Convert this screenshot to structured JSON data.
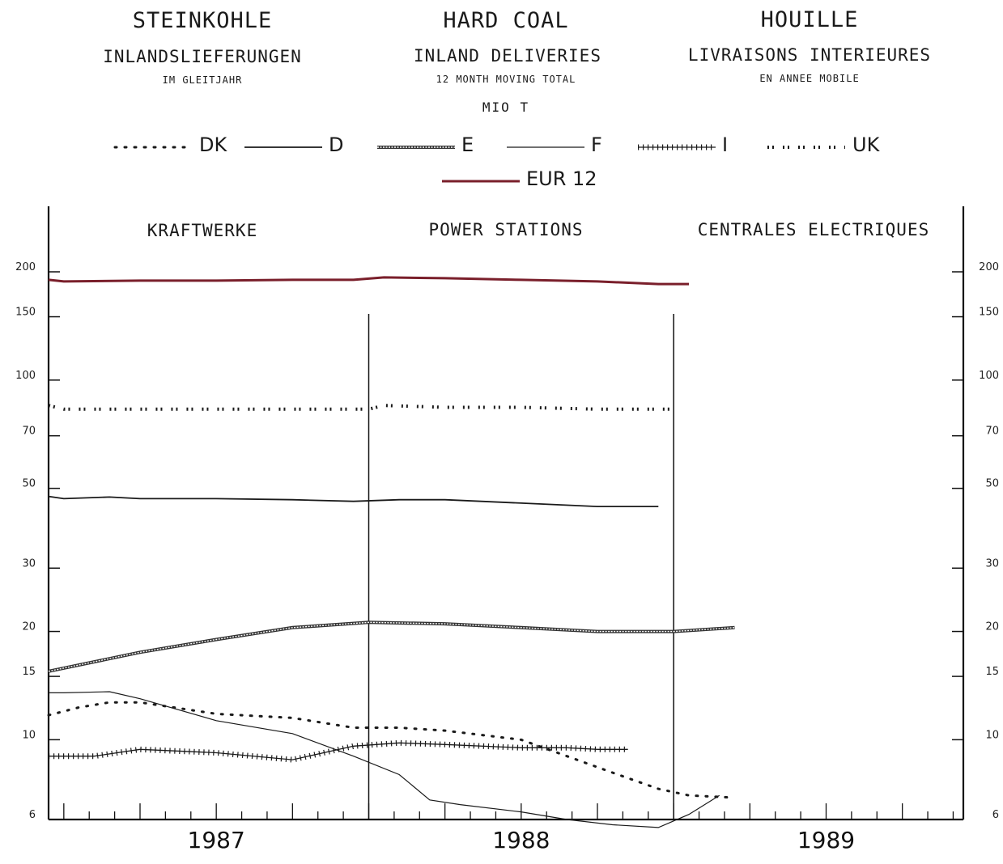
{
  "header": {
    "de": {
      "title": "STEINKOHLE",
      "subtitle": "INLANDSLIEFERUNGEN",
      "note": "IM GLEITJAHR"
    },
    "en": {
      "title": "HARD COAL",
      "subtitle": "INLAND DELIVERIES",
      "note": "12 MONTH MOVING TOTAL"
    },
    "fr": {
      "title": "HOUILLE",
      "subtitle": "LIVRAISONS INTERIEURES",
      "note": "EN ANNEE MOBILE"
    },
    "unit": "MIO T"
  },
  "panel": {
    "de": "KRAFTWERKE",
    "en": "POWER STATIONS",
    "fr": "CENTRALES ELECTRIQUES"
  },
  "chart_data": {
    "type": "line",
    "yscale": "log",
    "ylim": [
      6,
      200
    ],
    "yticks": [
      6,
      10,
      15,
      20,
      30,
      50,
      70,
      100,
      150,
      200
    ],
    "ytick_labels": [
      "6",
      "10",
      "15",
      "20",
      "30",
      "50",
      "70",
      "100",
      "150",
      "200"
    ],
    "xlim": [
      1986.45,
      1989.45
    ],
    "year_labels": [
      {
        "x": 1987,
        "label": "1987"
      },
      {
        "x": 1988,
        "label": "1988"
      },
      {
        "x": 1989,
        "label": "1989"
      }
    ],
    "year_separators": [
      1987.5,
      1988.5
    ],
    "series": [
      {
        "name": "EUR 12",
        "color": "#7a1f2b",
        "style": "solid-bold",
        "x": [
          1986.45,
          1986.5,
          1986.75,
          1987.0,
          1987.25,
          1987.45,
          1987.55,
          1987.75,
          1988.0,
          1988.25,
          1988.45,
          1988.55
        ],
        "y": [
          190,
          188,
          189,
          189,
          190,
          190,
          193,
          192,
          190,
          188,
          185,
          185
        ]
      },
      {
        "name": "UK",
        "color": "#1a1a1a",
        "style": "dash-dot",
        "x": [
          1986.45,
          1986.5,
          1986.75,
          1987.0,
          1987.25,
          1987.45,
          1987.5,
          1987.55,
          1987.75,
          1988.0,
          1988.25,
          1988.5
        ],
        "y": [
          85,
          83,
          83,
          83,
          83,
          83,
          83,
          85,
          84,
          84,
          83,
          83
        ]
      },
      {
        "name": "D",
        "color": "#1a1a1a",
        "style": "solid",
        "x": [
          1986.45,
          1986.5,
          1986.65,
          1986.75,
          1987.0,
          1987.25,
          1987.45,
          1987.6,
          1987.75,
          1988.0,
          1988.25,
          1988.45
        ],
        "y": [
          47.5,
          46.8,
          47.3,
          46.8,
          46.8,
          46.5,
          46.0,
          46.5,
          46.5,
          45.5,
          44.5,
          44.5
        ]
      },
      {
        "name": "E",
        "color": "#1a1a1a",
        "style": "double",
        "x": [
          1986.45,
          1986.75,
          1987.0,
          1987.25,
          1987.5,
          1987.75,
          1988.0,
          1988.25,
          1988.5,
          1988.7
        ],
        "y": [
          15.5,
          17.5,
          19.0,
          20.5,
          21.2,
          21.0,
          20.5,
          20.0,
          20.0,
          20.5
        ]
      },
      {
        "name": "F",
        "color": "#1a1a1a",
        "style": "thin",
        "x": [
          1986.45,
          1986.5,
          1986.65,
          1986.75,
          1987.0,
          1987.25,
          1987.45,
          1987.6,
          1987.7,
          1987.8,
          1988.0,
          1988.15,
          1988.3,
          1988.45,
          1988.55,
          1988.65
        ],
        "y": [
          13.5,
          13.5,
          13.6,
          13.0,
          11.3,
          10.4,
          9.0,
          8.0,
          6.8,
          6.6,
          6.3,
          6.0,
          5.8,
          5.7,
          6.2,
          7.0
        ]
      },
      {
        "name": "DK",
        "color": "#1a1a1a",
        "style": "dotted",
        "x": [
          1986.45,
          1986.55,
          1986.65,
          1986.75,
          1987.0,
          1987.25,
          1987.45,
          1987.6,
          1987.75,
          1988.0,
          1988.15,
          1988.3,
          1988.45,
          1988.55,
          1988.7
        ],
        "y": [
          11.7,
          12.3,
          12.7,
          12.7,
          11.8,
          11.5,
          10.8,
          10.8,
          10.6,
          10.0,
          9.0,
          8.1,
          7.3,
          7.0,
          6.9
        ]
      },
      {
        "name": "I",
        "color": "#1a1a1a",
        "style": "cross-line",
        "x": [
          1986.45,
          1986.6,
          1986.75,
          1987.0,
          1987.25,
          1987.45,
          1987.6,
          1987.75,
          1988.0,
          1988.15,
          1988.25,
          1988.35
        ],
        "y": [
          9.0,
          9.0,
          9.4,
          9.2,
          8.8,
          9.6,
          9.8,
          9.7,
          9.5,
          9.5,
          9.4,
          9.4
        ]
      }
    ]
  },
  "legend": [
    {
      "name": "DK",
      "style": "dotted"
    },
    {
      "name": "D",
      "style": "solid"
    },
    {
      "name": "E",
      "style": "double"
    },
    {
      "name": "F",
      "style": "thin"
    },
    {
      "name": "I",
      "style": "cross-line"
    },
    {
      "name": "UK",
      "style": "dash-dot"
    },
    {
      "name": "EUR 12",
      "style": "solid-bold",
      "color": "#7a1f2b"
    }
  ]
}
